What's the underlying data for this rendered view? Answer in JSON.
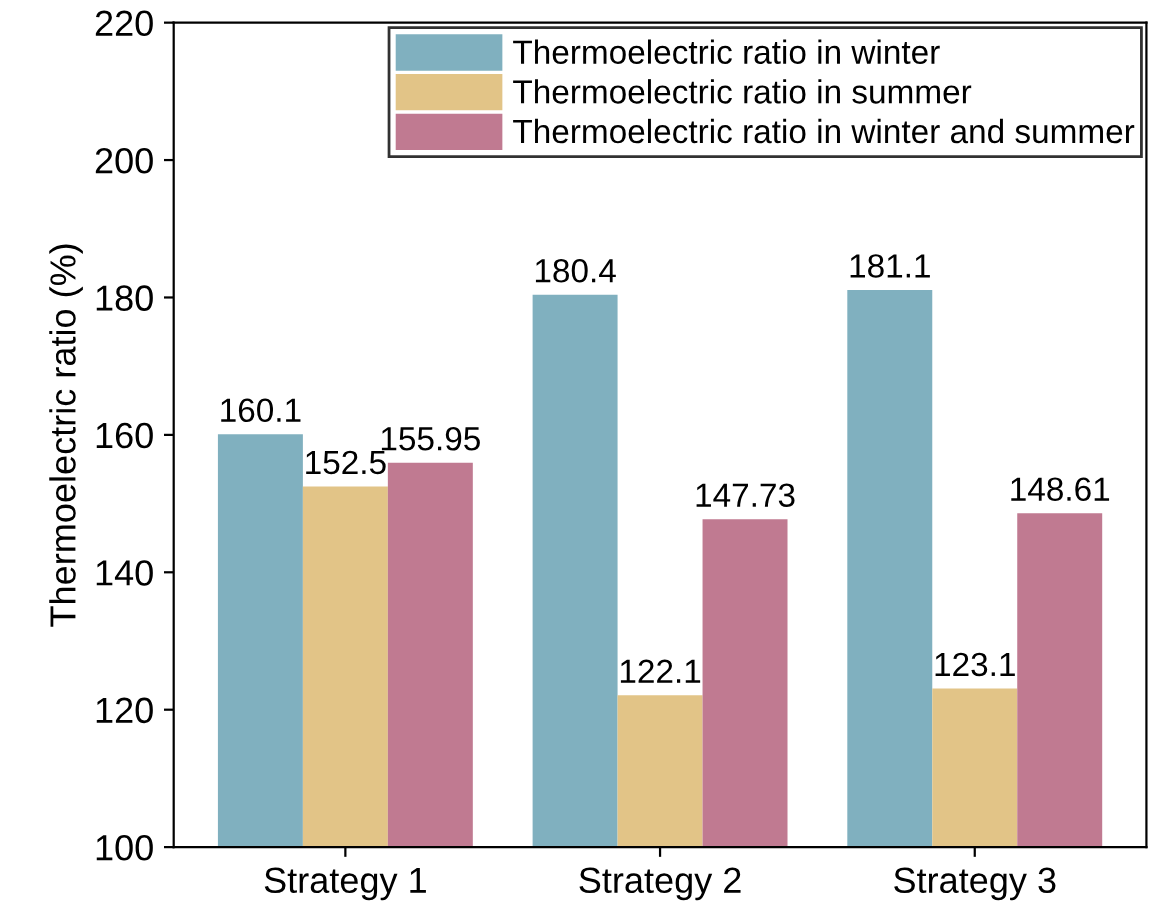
{
  "chart_data": {
    "type": "bar",
    "ylabel": "Thermoelectric ratio (%)",
    "categories": [
      "Strategy 1",
      "Strategy 2",
      "Strategy 3"
    ],
    "series": [
      {
        "name": "Thermoelectric ratio in winter",
        "color": "#80b0bf",
        "values": [
          160.1,
          180.4,
          181.1
        ]
      },
      {
        "name": "Thermoelectric ratio in summer",
        "color": "#e2c487",
        "values": [
          152.5,
          122.1,
          123.1
        ]
      },
      {
        "name": "Thermoelectric ratio in winter and summer",
        "color": "#c07a91",
        "values": [
          155.95,
          147.73,
          148.61
        ]
      }
    ],
    "ylim": [
      100,
      220
    ],
    "yticks": [
      100,
      120,
      140,
      160,
      180,
      200,
      220
    ],
    "grid": false,
    "legend": "top right",
    "data_labels": true
  }
}
